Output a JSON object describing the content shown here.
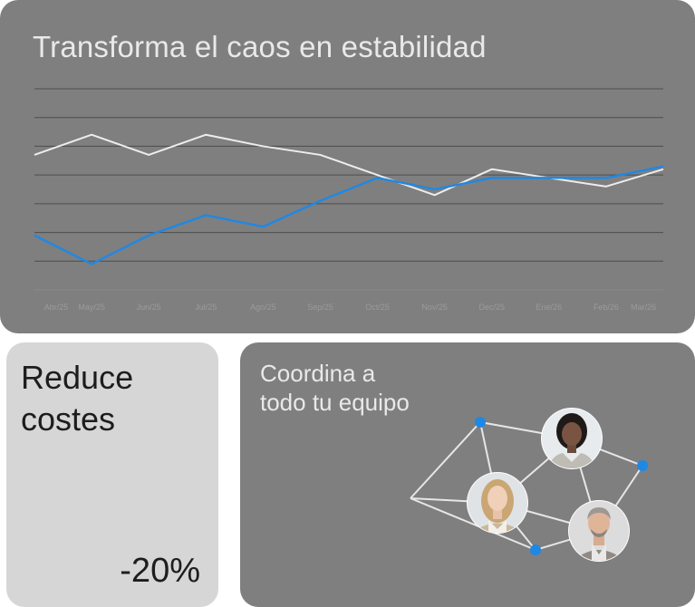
{
  "chart_card": {
    "title": "Transforma el caos en estabilidad"
  },
  "chart_data": {
    "type": "line",
    "categories": [
      "Abr/25",
      "May/25",
      "Jun/25",
      "Jul/25",
      "Ago/25",
      "Sep/25",
      "Oct/25",
      "Nov/25",
      "Dec/25",
      "Ene/26",
      "Feb/26",
      "Mar/26"
    ],
    "series": [
      {
        "values": [
          3.7,
          4.4,
          3.7,
          4.4,
          4.0,
          3.7,
          3.0,
          2.3,
          3.2,
          2.9,
          2.6,
          3.2
        ],
        "color": "#ededed"
      },
      {
        "values": [
          0.9,
          -0.1,
          0.9,
          1.6,
          1.2,
          2.1,
          2.9,
          2.5,
          2.9,
          2.9,
          2.9,
          3.3
        ],
        "color": "#1e88e5"
      }
    ],
    "ylim": [
      -1,
      6
    ],
    "grid": true,
    "xlabel": "",
    "ylabel": ""
  },
  "costs_card": {
    "title_line1": "Reduce",
    "title_line2": "costes",
    "value": "-20%"
  },
  "team_card": {
    "title_line1": "Coordina a",
    "title_line2": "todo tu equipo",
    "node_color": "#1e88e5",
    "line_color": "#e6e6e6"
  }
}
